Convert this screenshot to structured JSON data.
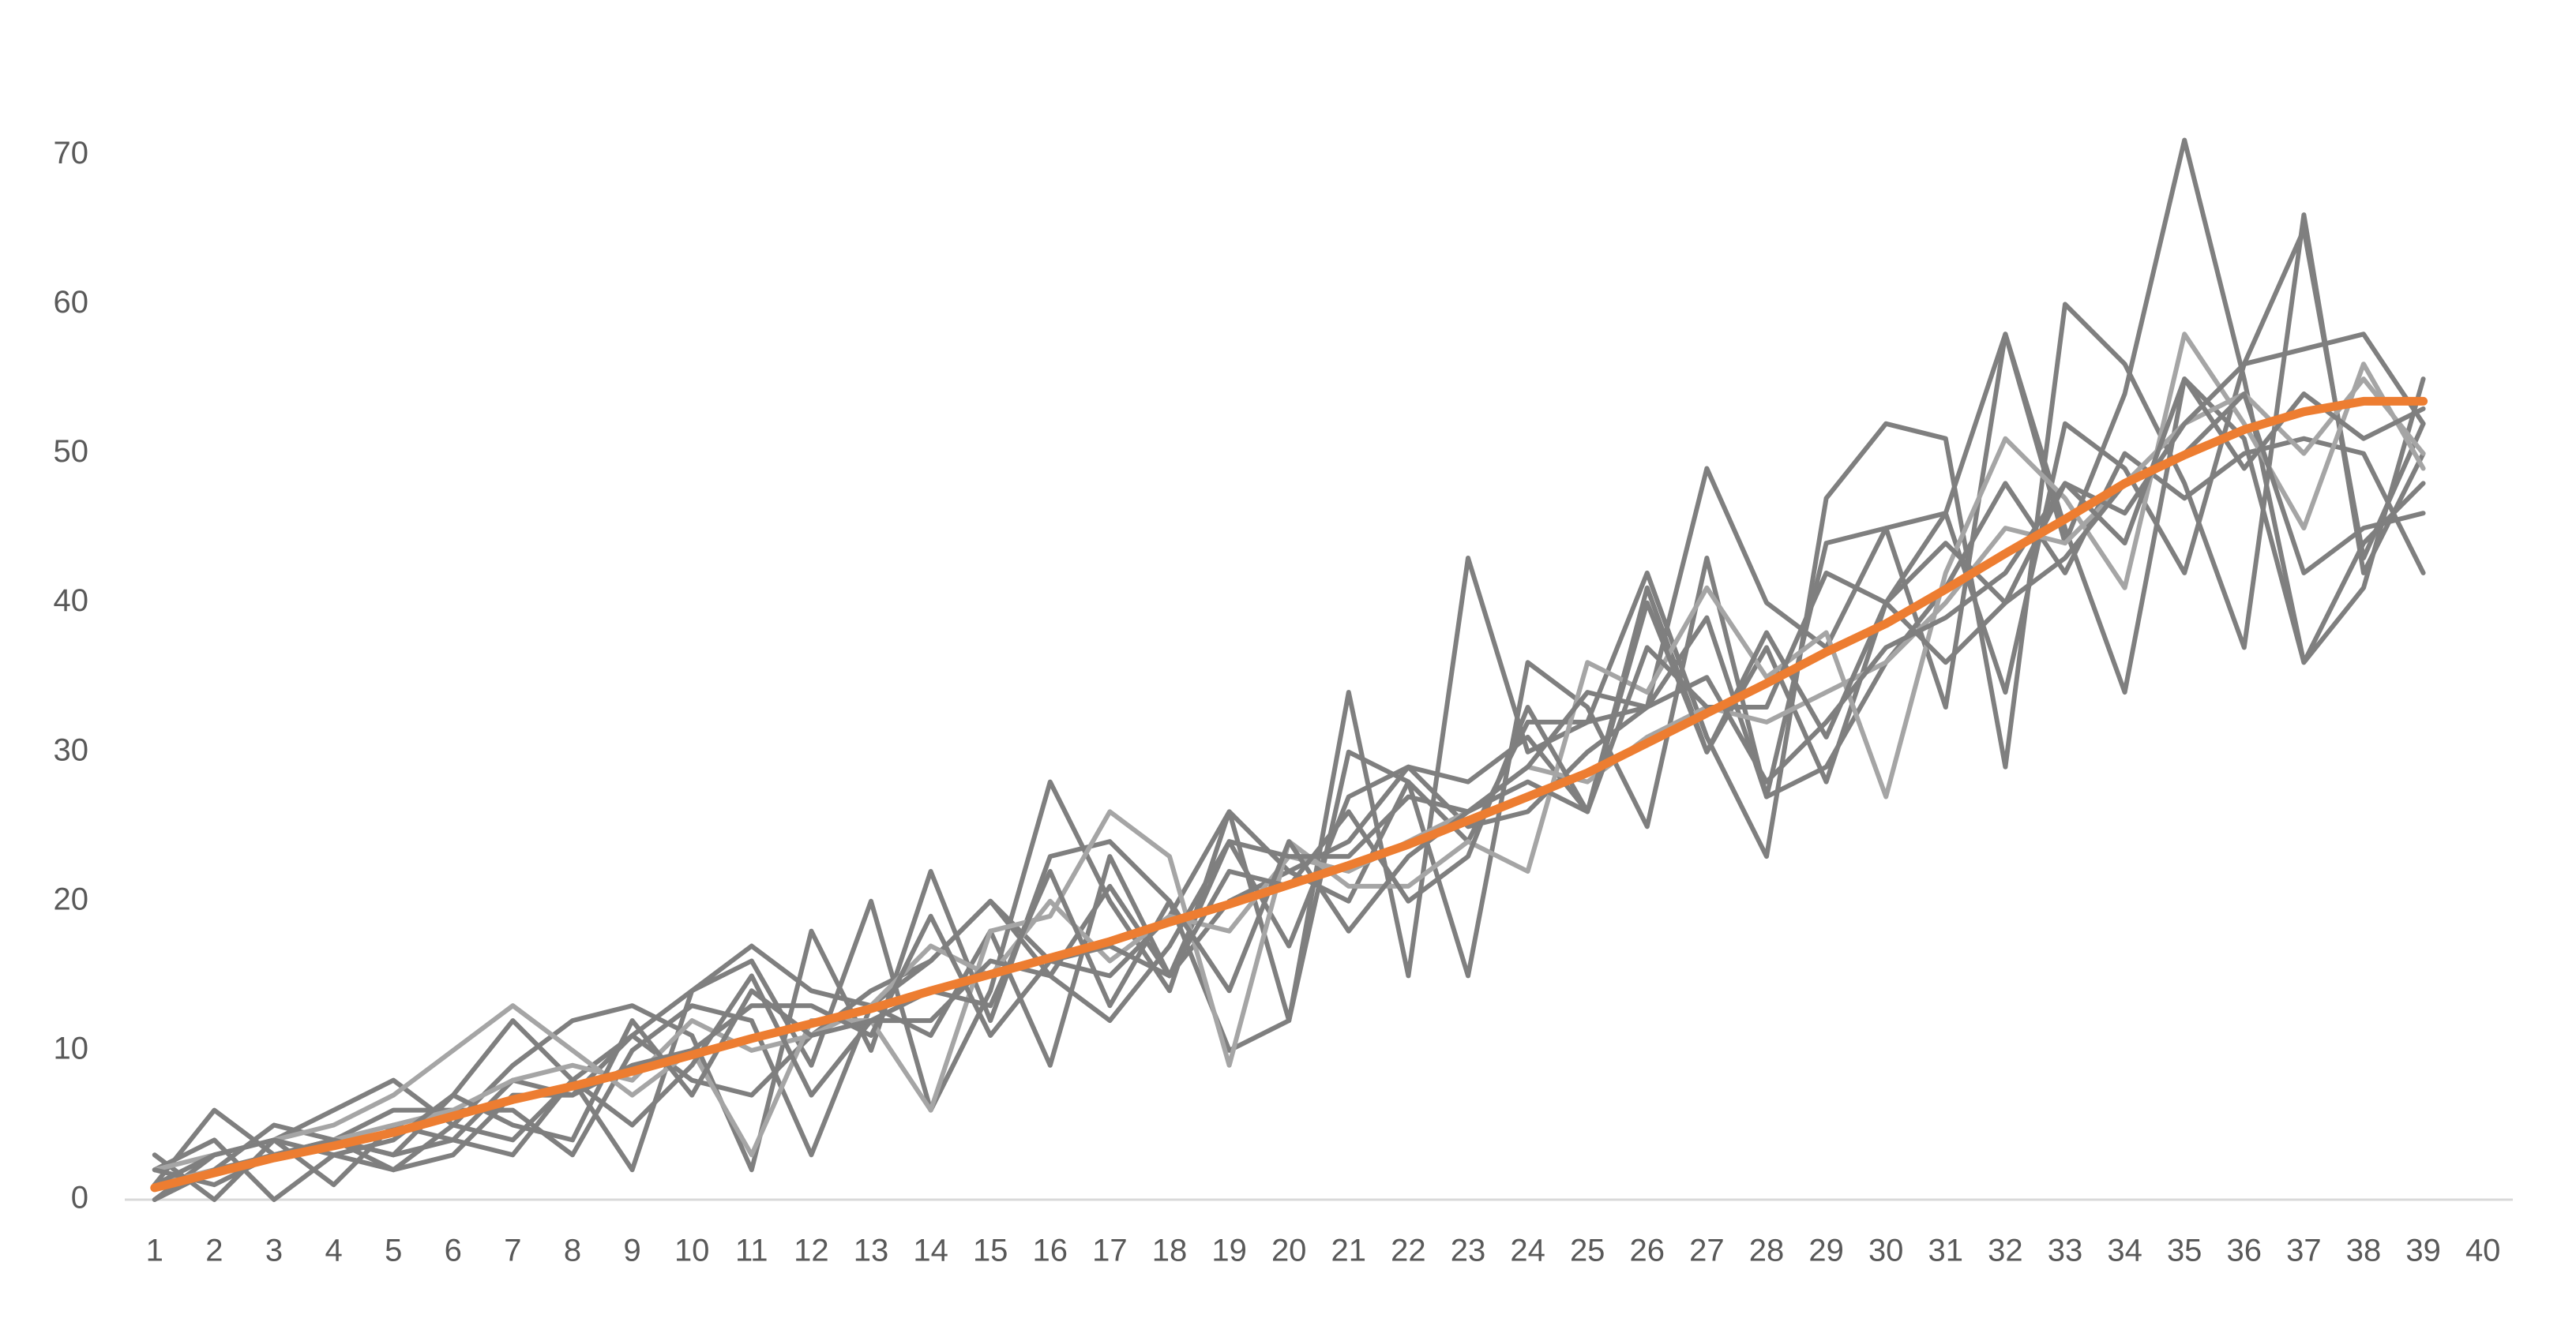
{
  "chart_data": {
    "type": "line",
    "categories": [
      1,
      2,
      3,
      4,
      5,
      6,
      7,
      8,
      9,
      10,
      11,
      12,
      13,
      14,
      15,
      16,
      17,
      18,
      19,
      20,
      21,
      22,
      23,
      24,
      25,
      26,
      27,
      28,
      29,
      30,
      31,
      32,
      33,
      34,
      35,
      36,
      37,
      38,
      39,
      40
    ],
    "ylim": [
      0,
      76
    ],
    "yticks": [
      0,
      10,
      20,
      30,
      40,
      50,
      60,
      70
    ],
    "grid": false,
    "series": [
      {
        "color": "#7f7f7f",
        "values": [
          3,
          0,
          4,
          6,
          8,
          5,
          4,
          8,
          11,
          14,
          17,
          14,
          13,
          16,
          20,
          16,
          15,
          19,
          26,
          22,
          24,
          29,
          25,
          26,
          30,
          33,
          49,
          40,
          37,
          45,
          46,
          58,
          44,
          54,
          71,
          55,
          36,
          41,
          55,
          null
        ]
      },
      {
        "color": "#7f7f7f",
        "values": [
          1,
          6,
          3,
          4,
          3,
          7,
          12,
          8,
          2,
          14,
          16,
          9,
          20,
          6,
          14,
          28,
          20,
          14,
          26,
          12,
          34,
          15,
          43,
          30,
          32,
          42,
          31,
          23,
          47,
          52,
          51,
          29,
          60,
          56,
          48,
          37,
          66,
          42,
          50,
          null
        ]
      },
      {
        "color": "#7f7f7f",
        "values": [
          2,
          4,
          0,
          3,
          2,
          5,
          9,
          12,
          13,
          11,
          2,
          18,
          10,
          22,
          12,
          23,
          24,
          20,
          10,
          12,
          30,
          28,
          15,
          36,
          33,
          25,
          43,
          27,
          44,
          45,
          33,
          58,
          45,
          34,
          55,
          51,
          36,
          44,
          48,
          null
        ]
      },
      {
        "color": "#7f7f7f",
        "values": [
          0,
          3,
          4,
          1,
          5,
          4,
          8,
          7,
          11,
          8,
          7,
          11,
          14,
          16,
          20,
          15,
          21,
          15,
          24,
          17,
          27,
          29,
          28,
          31,
          26,
          41,
          30,
          37,
          28,
          40,
          46,
          34,
          52,
          49,
          42,
          56,
          65,
          43,
          52,
          null
        ]
      },
      {
        "color": "#7f7f7f",
        "values": [
          1,
          2,
          5,
          4,
          6,
          6,
          6,
          3,
          10,
          13,
          12,
          3,
          13,
          11,
          18,
          9,
          23,
          15,
          20,
          22,
          20,
          28,
          24,
          32,
          32,
          33,
          39,
          27,
          29,
          36,
          41,
          48,
          42,
          50,
          47,
          50,
          51,
          50,
          42,
          null
        ]
      },
      {
        "color": "#a5a5a5",
        "values": [
          2,
          3,
          4,
          5,
          7,
          10,
          13,
          10,
          7,
          10,
          3,
          12,
          12,
          6,
          18,
          19,
          26,
          23,
          9,
          24,
          21,
          21,
          24,
          22,
          36,
          34,
          41,
          35,
          38,
          27,
          42,
          51,
          47,
          41,
          58,
          52,
          45,
          56,
          49,
          null
        ]
      },
      {
        "color": "#a5a5a5",
        "values": [
          1,
          2,
          3,
          4,
          5,
          6,
          8,
          9,
          8,
          12,
          10,
          11,
          13,
          17,
          15,
          20,
          16,
          19,
          18,
          23,
          22,
          24,
          26,
          29,
          28,
          31,
          33,
          32,
          34,
          36,
          40,
          45,
          44,
          48,
          52,
          54,
          50,
          55,
          50,
          null
        ]
      },
      {
        "color": "#7f7f7f",
        "values": [
          2,
          1,
          3,
          4,
          3,
          4,
          3,
          8,
          5,
          9,
          15,
          7,
          12,
          14,
          13,
          22,
          13,
          20,
          14,
          24,
          18,
          23,
          26,
          29,
          34,
          33,
          35,
          28,
          32,
          37,
          39,
          42,
          48,
          44,
          55,
          49,
          54,
          51,
          53,
          null
        ]
      },
      {
        "color": "#7f7f7f",
        "values": [
          0,
          2,
          3,
          4,
          2,
          3,
          7,
          7,
          9,
          10,
          13,
          13,
          11,
          19,
          11,
          16,
          17,
          15,
          22,
          21,
          26,
          20,
          23,
          33,
          26,
          40,
          30,
          38,
          31,
          40,
          36,
          40,
          43,
          48,
          50,
          54,
          42,
          45,
          46,
          null
        ]
      },
      {
        "color": "#7f7f7f",
        "values": [
          1,
          3,
          4,
          3,
          4,
          7,
          5,
          4,
          12,
          7,
          14,
          11,
          12,
          12,
          16,
          15,
          12,
          17,
          24,
          23,
          23,
          27,
          26,
          28,
          26,
          37,
          33,
          33,
          42,
          40,
          44,
          40,
          48,
          46,
          52,
          56,
          57,
          58,
          52,
          null
        ]
      },
      {
        "color": "#ed7d31",
        "values": [
          0.8,
          1.8,
          2.8,
          3.6,
          4.5,
          5.6,
          6.7,
          7.6,
          8.6,
          9.7,
          10.8,
          11.8,
          12.8,
          14,
          15.1,
          16.2,
          17.3,
          18.6,
          19.8,
          21.1,
          22.4,
          23.8,
          25.4,
          27,
          28.6,
          30.6,
          32.6,
          34.6,
          36.7,
          38.6,
          40.9,
          43.3,
          45.6,
          48,
          49.9,
          51.6,
          52.8,
          53.5,
          53.5,
          null
        ]
      }
    ]
  }
}
